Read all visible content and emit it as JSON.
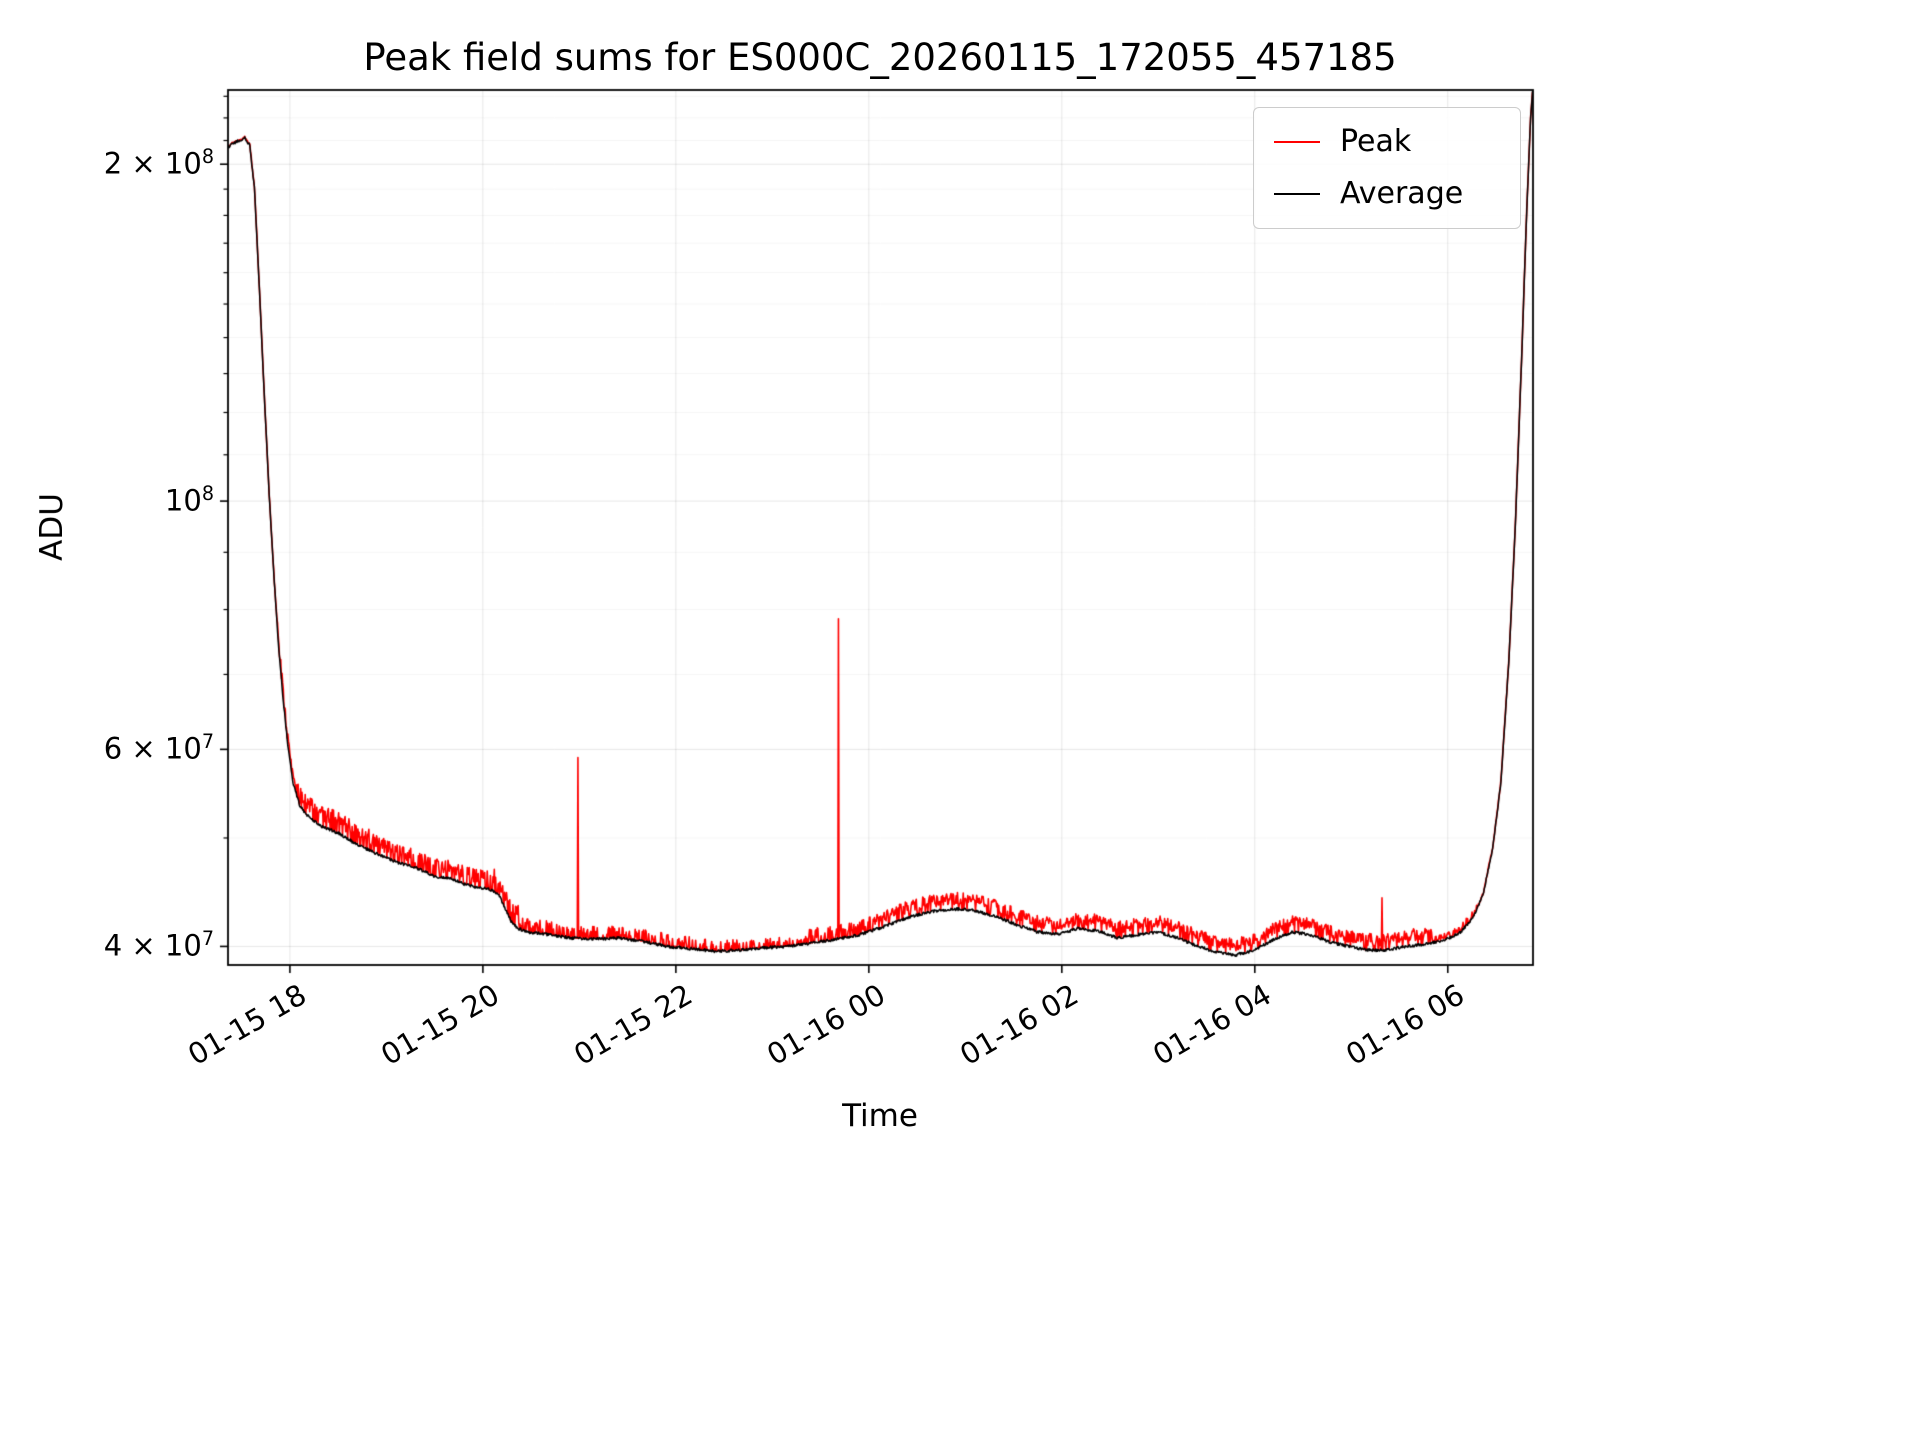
{
  "figure": {
    "background": "#ffffff"
  },
  "chart_data": {
    "type": "line",
    "title": "Peak field sums for ES000C_20260115_172055_457185",
    "xlabel": "Time",
    "ylabel": "ADU",
    "yscale": "log",
    "grid": {
      "major_color": "rgba(0,0,0,0.10)",
      "minor_color": "rgba(0,0,0,0.045)"
    },
    "axis_color": "#000000",
    "xlim_minutes": [
      1041.5,
      1853
    ],
    "ylim": [
      38500000,
      233000000
    ],
    "x_ticks": [
      {
        "minute": 1080,
        "label": "01-15 18"
      },
      {
        "minute": 1200,
        "label": "01-15 20"
      },
      {
        "minute": 1320,
        "label": "01-15 22"
      },
      {
        "minute": 1440,
        "label": "01-16 00"
      },
      {
        "minute": 1560,
        "label": "01-16 02"
      },
      {
        "minute": 1680,
        "label": "01-16 04"
      },
      {
        "minute": 1800,
        "label": "01-16 06"
      }
    ],
    "y_ticks": [
      {
        "value": 200000000.0,
        "coeff": "2",
        "exp": "8"
      },
      {
        "value": 100000000.0,
        "coeff": "",
        "exp": "8"
      },
      {
        "value": 60000000.0,
        "coeff": "6",
        "exp": "7"
      },
      {
        "value": 40000000.0,
        "coeff": "4",
        "exp": "7"
      }
    ],
    "y_minor_ticks": [
      50000000.0,
      70000000.0,
      80000000.0,
      90000000.0,
      110000000.0,
      120000000.0,
      130000000.0,
      140000000.0,
      150000000.0,
      160000000.0,
      170000000.0,
      180000000.0,
      190000000.0,
      210000000.0,
      220000000.0,
      230000000.0
    ],
    "series": [
      {
        "name": "Peak",
        "color": "#ff0000",
        "linewidth": 1.6
      },
      {
        "name": "Average",
        "color": "#000000",
        "linewidth": 1.5
      }
    ],
    "legend": {
      "entries": [
        {
          "label": "Peak",
          "color": "#ff0000"
        },
        {
          "label": "Average",
          "color": "#000000"
        }
      ]
    },
    "baseline": [
      [
        1041.5,
        207000000.0
      ],
      [
        1045,
        209000000.0
      ],
      [
        1049,
        210000000.0
      ],
      [
        1052,
        211000000.0
      ],
      [
        1055,
        208000000.0
      ],
      [
        1058,
        190000000.0
      ],
      [
        1061,
        155000000.0
      ],
      [
        1064,
        125000000.0
      ],
      [
        1067,
        102000000.0
      ],
      [
        1070,
        86000000.0
      ],
      [
        1073,
        74000000.0
      ],
      [
        1076,
        66000000.0
      ],
      [
        1079,
        60000000.0
      ],
      [
        1082,
        56000000.0
      ],
      [
        1086,
        53500000.0
      ],
      [
        1090,
        52500000.0
      ],
      [
        1095,
        51800000.0
      ],
      [
        1100,
        51200000.0
      ],
      [
        1110,
        50500000.0
      ],
      [
        1120,
        49500000.0
      ],
      [
        1130,
        48700000.0
      ],
      [
        1140,
        48000000.0
      ],
      [
        1148,
        47500000.0
      ],
      [
        1155,
        47200000.0
      ],
      [
        1162,
        46800000.0
      ],
      [
        1170,
        46200000.0
      ],
      [
        1180,
        46000000.0
      ],
      [
        1188,
        45500000.0
      ],
      [
        1196,
        45200000.0
      ],
      [
        1204,
        45000000.0
      ],
      [
        1210,
        44500000.0
      ],
      [
        1214,
        43200000.0
      ],
      [
        1218,
        42000000.0
      ],
      [
        1222,
        41500000.0
      ],
      [
        1228,
        41200000.0
      ],
      [
        1240,
        41000000.0
      ],
      [
        1255,
        40700000.0
      ],
      [
        1270,
        40600000.0
      ],
      [
        1285,
        40700000.0
      ],
      [
        1300,
        40400000.0
      ],
      [
        1315,
        40000000.0
      ],
      [
        1330,
        39800000.0
      ],
      [
        1345,
        39600000.0
      ],
      [
        1360,
        39700000.0
      ],
      [
        1375,
        39900000.0
      ],
      [
        1390,
        40000000.0
      ],
      [
        1405,
        40300000.0
      ],
      [
        1420,
        40600000.0
      ],
      [
        1435,
        41000000.0
      ],
      [
        1450,
        41700000.0
      ],
      [
        1465,
        42500000.0
      ],
      [
        1480,
        43000000.0
      ],
      [
        1495,
        43200000.0
      ],
      [
        1505,
        43100000.0
      ],
      [
        1520,
        42500000.0
      ],
      [
        1532,
        41800000.0
      ],
      [
        1545,
        41200000.0
      ],
      [
        1558,
        41000000.0
      ],
      [
        1570,
        41500000.0
      ],
      [
        1582,
        41300000.0
      ],
      [
        1595,
        40700000.0
      ],
      [
        1608,
        41000000.0
      ],
      [
        1620,
        41200000.0
      ],
      [
        1632,
        40700000.0
      ],
      [
        1645,
        40000000.0
      ],
      [
        1657,
        39500000.0
      ],
      [
        1668,
        39300000.0
      ],
      [
        1680,
        39700000.0
      ],
      [
        1692,
        40600000.0
      ],
      [
        1703,
        41200000.0
      ],
      [
        1714,
        41000000.0
      ],
      [
        1726,
        40400000.0
      ],
      [
        1738,
        40000000.0
      ],
      [
        1750,
        39700000.0
      ],
      [
        1762,
        39700000.0
      ],
      [
        1774,
        40000000.0
      ],
      [
        1786,
        40200000.0
      ],
      [
        1798,
        40500000.0
      ],
      [
        1808,
        41200000.0
      ],
      [
        1816,
        42500000.0
      ],
      [
        1822,
        44500000.0
      ],
      [
        1828,
        49000000.0
      ],
      [
        1833,
        56000000.0
      ],
      [
        1838,
        72000000.0
      ],
      [
        1842,
        95000000.0
      ],
      [
        1846,
        135000000.0
      ],
      [
        1849,
        180000000.0
      ],
      [
        1851.5,
        220000000.0
      ],
      [
        1853,
        235000000.0
      ]
    ],
    "noise_regions": [
      {
        "start": 1041,
        "end": 1072,
        "amp": 0.006,
        "density": 0.35
      },
      {
        "start": 1072,
        "end": 1085,
        "amp": 0.03,
        "density": 0.6
      },
      {
        "start": 1085,
        "end": 1130,
        "amp": 0.045,
        "density": 0.7
      },
      {
        "start": 1130,
        "end": 1205,
        "amp": 0.038,
        "density": 0.65
      },
      {
        "start": 1205,
        "end": 1222,
        "amp": 0.05,
        "density": 0.55
      },
      {
        "start": 1222,
        "end": 1265,
        "amp": 0.03,
        "density": 0.4
      },
      {
        "start": 1265,
        "end": 1340,
        "amp": 0.027,
        "density": 0.35
      },
      {
        "start": 1340,
        "end": 1400,
        "amp": 0.022,
        "density": 0.3
      },
      {
        "start": 1400,
        "end": 1442,
        "amp": 0.03,
        "density": 0.5
      },
      {
        "start": 1442,
        "end": 1532,
        "amp": 0.035,
        "density": 0.8
      },
      {
        "start": 1532,
        "end": 1790,
        "amp": 0.035,
        "density": 0.85
      },
      {
        "start": 1790,
        "end": 1818,
        "amp": 0.015,
        "density": 0.6
      },
      {
        "start": 1818,
        "end": 1853,
        "amp": 0.005,
        "density": 0.3
      }
    ],
    "spikes": [
      {
        "t": 1259,
        "value": 59000000.0
      },
      {
        "t": 1421,
        "value": 78500000.0
      },
      {
        "t": 1759,
        "value": 44200000.0
      }
    ]
  }
}
